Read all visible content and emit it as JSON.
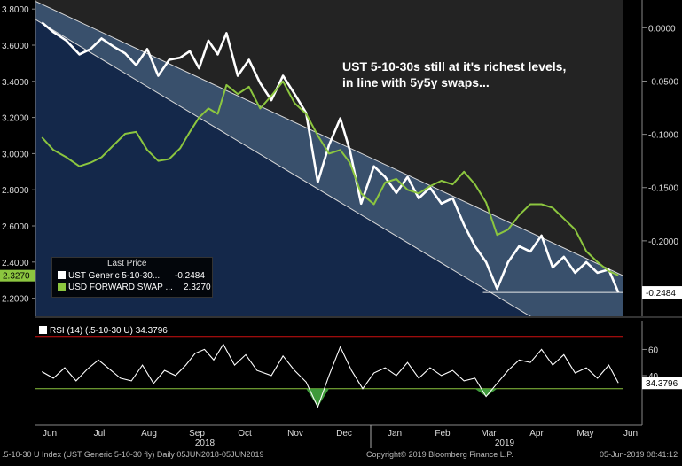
{
  "chart_data": [
    {
      "type": "line",
      "annotation": "UST 5-10-30s still at it's richest levels, in line with 5y5y swaps...",
      "legend": {
        "title": "Last Price",
        "placement": "left-bottom",
        "entries": [
          {
            "name": "UST Generic 5-10-30...",
            "value": "-0.2484",
            "color": "#ffffff"
          },
          {
            "name": "USD FORWARD SWAP ...",
            "value": "2.3270",
            "color": "#8cc63f"
          }
        ]
      },
      "left_axis": {
        "range": [
          2.1,
          3.85
        ],
        "ticks": [
          "2.2000",
          "2.4000",
          "2.6000",
          "2.8000",
          "3.0000",
          "3.2000",
          "3.4000",
          "3.6000",
          "3.8000"
        ],
        "last_value_label": "2.3270"
      },
      "right_axis": {
        "range": [
          -0.2708,
          0.0261
        ],
        "ticks": [
          "-0.2000",
          "-0.1500",
          "-0.1000",
          "-0.0500",
          "0.0000"
        ],
        "last_value_label": "-0.2484"
      },
      "x_axis": {
        "months": [
          "Jun",
          "Jul",
          "Aug",
          "Sep",
          "Oct",
          "Nov",
          "Dec",
          "Jan",
          "Feb",
          "Mar",
          "Apr",
          "May",
          "Jun"
        ],
        "years": [
          "2018",
          "2019"
        ]
      },
      "series": [
        {
          "name": "UST Generic 5-10-30...",
          "axis": "right",
          "color": "#ffffff",
          "points": [
            [
              "2018-06-05",
              0.005
            ],
            [
              "2018-06-12",
              -0.004
            ],
            [
              "2018-06-20",
              -0.012
            ],
            [
              "2018-06-28",
              -0.025
            ],
            [
              "2018-07-05",
              -0.02
            ],
            [
              "2018-07-12",
              -0.01
            ],
            [
              "2018-07-20",
              -0.018
            ],
            [
              "2018-07-27",
              -0.024
            ],
            [
              "2018-08-03",
              -0.035
            ],
            [
              "2018-08-10",
              -0.02
            ],
            [
              "2018-08-17",
              -0.045
            ],
            [
              "2018-08-24",
              -0.03
            ],
            [
              "2018-08-31",
              -0.028
            ],
            [
              "2018-09-07",
              -0.022
            ],
            [
              "2018-09-14",
              -0.038
            ],
            [
              "2018-09-21",
              -0.012
            ],
            [
              "2018-09-28",
              -0.025
            ],
            [
              "2018-10-04",
              -0.005
            ],
            [
              "2018-10-11",
              -0.045
            ],
            [
              "2018-10-18",
              -0.03
            ],
            [
              "2018-10-25",
              -0.052
            ],
            [
              "2018-11-01",
              -0.068
            ],
            [
              "2018-11-08",
              -0.045
            ],
            [
              "2018-11-15",
              -0.062
            ],
            [
              "2018-11-22",
              -0.08
            ],
            [
              "2018-11-29",
              -0.145
            ],
            [
              "2018-12-06",
              -0.11
            ],
            [
              "2018-12-13",
              -0.085
            ],
            [
              "2018-12-19",
              -0.115
            ],
            [
              "2018-12-26",
              -0.165
            ],
            [
              "2019-01-03",
              -0.13
            ],
            [
              "2019-01-10",
              -0.14
            ],
            [
              "2019-01-17",
              -0.155
            ],
            [
              "2019-01-24",
              -0.14
            ],
            [
              "2019-01-31",
              -0.16
            ],
            [
              "2019-02-07",
              -0.15
            ],
            [
              "2019-02-14",
              -0.165
            ],
            [
              "2019-02-21",
              -0.16
            ],
            [
              "2019-02-28",
              -0.185
            ],
            [
              "2019-03-07",
              -0.205
            ],
            [
              "2019-03-14",
              -0.22
            ],
            [
              "2019-03-21",
              -0.245
            ],
            [
              "2019-03-28",
              -0.22
            ],
            [
              "2019-04-04",
              -0.205
            ],
            [
              "2019-04-11",
              -0.21
            ],
            [
              "2019-04-18",
              -0.195
            ],
            [
              "2019-04-25",
              -0.225
            ],
            [
              "2019-05-02",
              -0.215
            ],
            [
              "2019-05-09",
              -0.23
            ],
            [
              "2019-05-16",
              -0.22
            ],
            [
              "2019-05-23",
              -0.23
            ],
            [
              "2019-05-30",
              -0.227
            ],
            [
              "2019-06-05",
              -0.2484
            ]
          ]
        },
        {
          "name": "USD FORWARD SWAP ...",
          "axis": "left",
          "color": "#8cc63f",
          "points": [
            [
              "2018-06-05",
              3.09
            ],
            [
              "2018-06-12",
              3.02
            ],
            [
              "2018-06-20",
              2.98
            ],
            [
              "2018-06-28",
              2.93
            ],
            [
              "2018-07-05",
              2.95
            ],
            [
              "2018-07-12",
              2.98
            ],
            [
              "2018-07-20",
              3.05
            ],
            [
              "2018-07-27",
              3.11
            ],
            [
              "2018-08-03",
              3.12
            ],
            [
              "2018-08-10",
              3.02
            ],
            [
              "2018-08-17",
              2.96
            ],
            [
              "2018-08-24",
              2.97
            ],
            [
              "2018-08-31",
              3.03
            ],
            [
              "2018-09-07",
              3.12
            ],
            [
              "2018-09-14",
              3.2
            ],
            [
              "2018-09-21",
              3.25
            ],
            [
              "2018-09-28",
              3.22
            ],
            [
              "2018-10-04",
              3.38
            ],
            [
              "2018-10-11",
              3.33
            ],
            [
              "2018-10-18",
              3.37
            ],
            [
              "2018-10-25",
              3.25
            ],
            [
              "2018-11-01",
              3.32
            ],
            [
              "2018-11-08",
              3.4
            ],
            [
              "2018-11-15",
              3.28
            ],
            [
              "2018-11-22",
              3.22
            ],
            [
              "2018-11-29",
              3.1
            ],
            [
              "2018-12-06",
              3.0
            ],
            [
              "2018-12-13",
              3.02
            ],
            [
              "2018-12-19",
              2.95
            ],
            [
              "2018-12-26",
              2.78
            ],
            [
              "2019-01-03",
              2.72
            ],
            [
              "2019-01-10",
              2.84
            ],
            [
              "2019-01-17",
              2.86
            ],
            [
              "2019-01-24",
              2.8
            ],
            [
              "2019-01-31",
              2.78
            ],
            [
              "2019-02-07",
              2.82
            ],
            [
              "2019-02-14",
              2.85
            ],
            [
              "2019-02-21",
              2.83
            ],
            [
              "2019-02-28",
              2.9
            ],
            [
              "2019-03-07",
              2.83
            ],
            [
              "2019-03-14",
              2.73
            ],
            [
              "2019-03-21",
              2.55
            ],
            [
              "2019-03-28",
              2.58
            ],
            [
              "2019-04-04",
              2.66
            ],
            [
              "2019-04-11",
              2.72
            ],
            [
              "2019-04-18",
              2.72
            ],
            [
              "2019-04-25",
              2.7
            ],
            [
              "2019-05-02",
              2.64
            ],
            [
              "2019-05-09",
              2.58
            ],
            [
              "2019-05-16",
              2.46
            ],
            [
              "2019-05-23",
              2.4
            ],
            [
              "2019-05-30",
              2.35
            ],
            [
              "2019-06-05",
              2.327
            ]
          ]
        }
      ],
      "channel": {
        "upper": [
          [
            "2018-06-05",
            0.022
          ],
          [
            "2019-06-05",
            -0.2306
          ]
        ],
        "lower": [
          [
            "2018-06-05",
            0.0041
          ],
          [
            "2019-06-05",
            -0.3204
          ]
        ]
      },
      "reference_level": {
        "value": -0.2484,
        "from": "2019-03-12"
      }
    },
    {
      "type": "line",
      "title": "RSI (14) (.5-10-30 U) 34.3796",
      "y_range": [
        2,
        82
      ],
      "y_ticks": [
        "40",
        "60"
      ],
      "last_value_label": "34.3796",
      "overbought": 70,
      "oversold": 30,
      "series": [
        {
          "name": "RSI (14) (.5-10-30 U)",
          "color": "#ffffff",
          "points": [
            [
              "2018-06-05",
              43
            ],
            [
              "2018-06-12",
              38
            ],
            [
              "2018-06-19",
              46
            ],
            [
              "2018-06-26",
              36
            ],
            [
              "2018-07-03",
              45
            ],
            [
              "2018-07-10",
              52
            ],
            [
              "2018-07-17",
              45
            ],
            [
              "2018-07-24",
              38
            ],
            [
              "2018-07-31",
              36
            ],
            [
              "2018-08-07",
              48
            ],
            [
              "2018-08-14",
              34
            ],
            [
              "2018-08-21",
              44
            ],
            [
              "2018-08-28",
              40
            ],
            [
              "2018-09-04",
              48
            ],
            [
              "2018-09-11",
              57
            ],
            [
              "2018-09-18",
              60
            ],
            [
              "2018-09-25",
              52
            ],
            [
              "2018-10-02",
              64
            ],
            [
              "2018-10-09",
              48
            ],
            [
              "2018-10-16",
              56
            ],
            [
              "2018-10-23",
              44
            ],
            [
              "2018-11-01",
              40
            ],
            [
              "2018-11-08",
              55
            ],
            [
              "2018-11-15",
              44
            ],
            [
              "2018-11-22",
              35
            ],
            [
              "2018-11-29",
              16
            ],
            [
              "2018-12-06",
              40
            ],
            [
              "2018-12-13",
              62
            ],
            [
              "2018-12-20",
              44
            ],
            [
              "2018-12-27",
              30
            ],
            [
              "2019-01-03",
              42
            ],
            [
              "2019-01-10",
              46
            ],
            [
              "2019-01-17",
              40
            ],
            [
              "2019-01-24",
              50
            ],
            [
              "2019-01-31",
              38
            ],
            [
              "2019-02-07",
              46
            ],
            [
              "2019-02-14",
              40
            ],
            [
              "2019-02-21",
              44
            ],
            [
              "2019-02-28",
              36
            ],
            [
              "2019-03-07",
              38
            ],
            [
              "2019-03-14",
              24
            ],
            [
              "2019-03-21",
              34
            ],
            [
              "2019-03-28",
              44
            ],
            [
              "2019-04-04",
              52
            ],
            [
              "2019-04-11",
              50
            ],
            [
              "2019-04-18",
              60
            ],
            [
              "2019-04-25",
              48
            ],
            [
              "2019-05-02",
              56
            ],
            [
              "2019-05-09",
              42
            ],
            [
              "2019-05-16",
              46
            ],
            [
              "2019-05-23",
              38
            ],
            [
              "2019-05-30",
              48
            ],
            [
              "2019-06-05",
              34.38
            ]
          ]
        }
      ]
    }
  ],
  "footer": {
    "left": ".5-10-30 U Index (UST Generic 5-10-30 fly)  Daily 05JUN2018-05JUN2019",
    "center": "Copyright© 2019 Bloomberg Finance L.P.",
    "right": "05-Jun-2019 08:41:12"
  },
  "colors": {
    "background": "#000000",
    "upper_fill": "#232323",
    "lower_fill": "#14284a",
    "channel_fill": "#3d5470",
    "green": "#8cc63f",
    "white": "#ffffff",
    "red_line": "#d01010"
  }
}
